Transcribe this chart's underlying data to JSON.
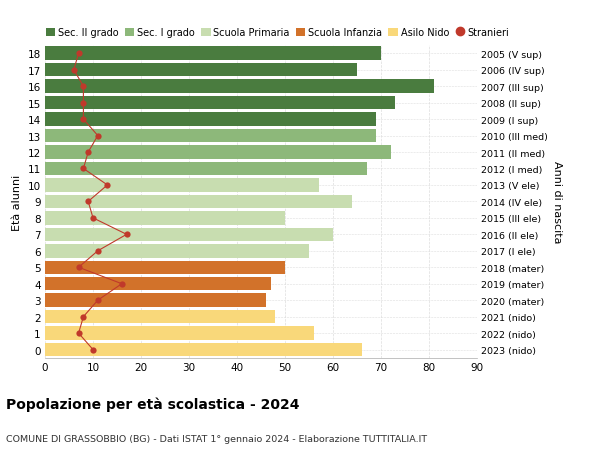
{
  "ages": [
    18,
    17,
    16,
    15,
    14,
    13,
    12,
    11,
    10,
    9,
    8,
    7,
    6,
    5,
    4,
    3,
    2,
    1,
    0
  ],
  "bar_values": [
    70,
    65,
    81,
    73,
    69,
    69,
    72,
    67,
    57,
    64,
    50,
    60,
    55,
    50,
    47,
    46,
    48,
    56,
    66
  ],
  "stranieri": [
    7,
    6,
    8,
    8,
    8,
    11,
    9,
    8,
    13,
    9,
    10,
    17,
    11,
    7,
    16,
    11,
    8,
    7,
    10
  ],
  "right_labels": [
    "2005 (V sup)",
    "2006 (IV sup)",
    "2007 (III sup)",
    "2008 (II sup)",
    "2009 (I sup)",
    "2010 (III med)",
    "2011 (II med)",
    "2012 (I med)",
    "2013 (V ele)",
    "2014 (IV ele)",
    "2015 (III ele)",
    "2016 (II ele)",
    "2017 (I ele)",
    "2018 (mater)",
    "2019 (mater)",
    "2020 (mater)",
    "2021 (nido)",
    "2022 (nido)",
    "2023 (nido)"
  ],
  "bar_colors": [
    "#4a7c3f",
    "#4a7c3f",
    "#4a7c3f",
    "#4a7c3f",
    "#4a7c3f",
    "#8db87a",
    "#8db87a",
    "#8db87a",
    "#c8ddb0",
    "#c8ddb0",
    "#c8ddb0",
    "#c8ddb0",
    "#c8ddb0",
    "#d2722a",
    "#d2722a",
    "#d2722a",
    "#f9d87a",
    "#f9d87a",
    "#f9d87a"
  ],
  "legend_labels": [
    "Sec. II grado",
    "Sec. I grado",
    "Scuola Primaria",
    "Scuola Infanzia",
    "Asilo Nido",
    "Stranieri"
  ],
  "legend_colors": [
    "#4a7c3f",
    "#8db87a",
    "#c8ddb0",
    "#d2722a",
    "#f9d87a",
    "#c0392b"
  ],
  "title": "Popolazione per età scolastica - 2024",
  "subtitle": "COMUNE DI GRASSOBBIO (BG) - Dati ISTAT 1° gennaio 2024 - Elaborazione TUTTITALIA.IT",
  "ylabel_left": "Età alunni",
  "ylabel_right": "Anni di nascita",
  "xlim": [
    0,
    90
  ],
  "xticks": [
    0,
    10,
    20,
    30,
    40,
    50,
    60,
    70,
    80,
    90
  ],
  "dot_color": "#c0392b",
  "line_color": "#c0392b",
  "bg_color": "#ffffff",
  "grid_color": "#dddddd"
}
